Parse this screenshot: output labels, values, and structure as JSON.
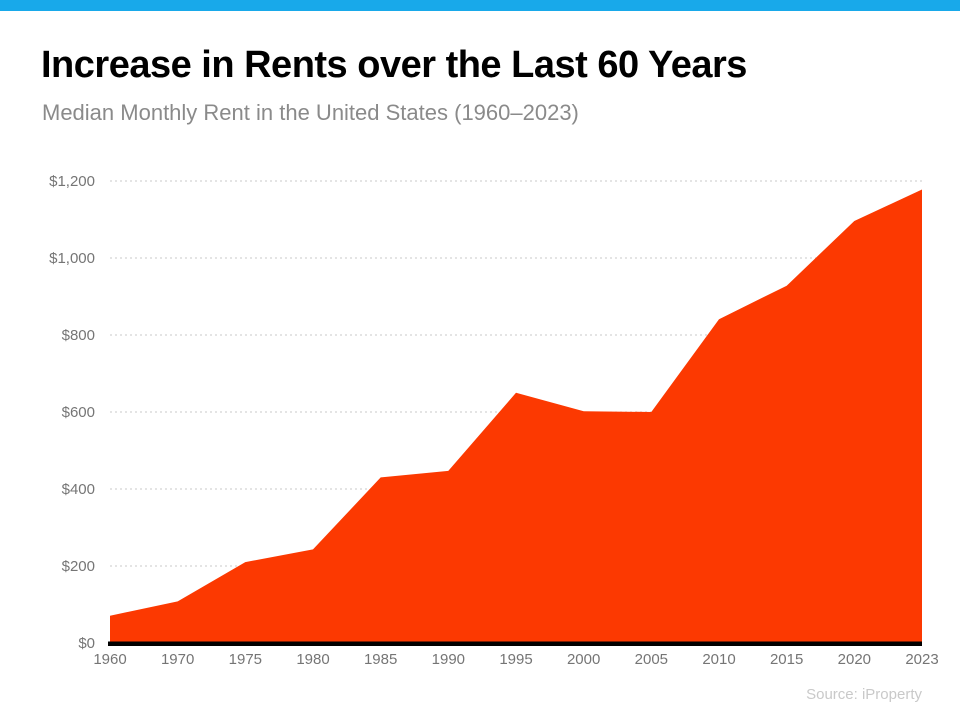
{
  "page": {
    "title": "Increase in Rents over the Last 60 Years",
    "subtitle": "Median Monthly Rent in the United States (1960–2023)",
    "source": "Source: iProperty"
  },
  "colors": {
    "top_bar": "#18A9EA",
    "area_fill": "#FC3901",
    "axis_line": "#000000",
    "gridline": "#C9C9C9",
    "tick_label": "#757575",
    "subtitle_text": "#8A8A8A",
    "title_text": "#000000",
    "source_text": "#C9C9C9"
  },
  "chart_data": {
    "type": "area",
    "title": "Increase in Rents over the Last 60 Years",
    "subtitle": "Median Monthly Rent in the United States (1960–2023)",
    "series_name": "Median Monthly Rent (USD)",
    "categories": [
      "1960",
      "1970",
      "1975",
      "1980",
      "1985",
      "1990",
      "1995",
      "2000",
      "2005",
      "2010",
      "2015",
      "2020",
      "2023"
    ],
    "values": [
      71,
      108,
      210,
      243,
      430,
      447,
      650,
      602,
      600,
      841,
      928,
      1096,
      1178
    ],
    "xlabel": "",
    "ylabel": "",
    "ylim": [
      0,
      1200
    ],
    "y_tick_interval": 200,
    "y_tick_labels": [
      "$0",
      "$200",
      "$400",
      "$600",
      "$800",
      "$1,000",
      "$1,200"
    ],
    "grid": "horizontal-dashed",
    "legend": "none",
    "source": "Source: iProperty"
  }
}
